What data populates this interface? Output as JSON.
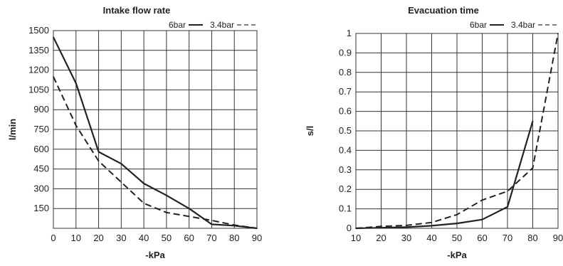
{
  "chart_data": [
    {
      "type": "line",
      "title": "Intake flow rate",
      "xlabel": "-kPa",
      "ylabel": "l/min",
      "x": [
        0,
        10,
        20,
        30,
        40,
        50,
        60,
        70,
        80,
        90
      ],
      "xticks": [
        "0",
        "10",
        "20",
        "30",
        "40",
        "50",
        "60",
        "70",
        "80",
        "90"
      ],
      "xlim": [
        0,
        90
      ],
      "yticks": [
        "150",
        "300",
        "450",
        "600",
        "750",
        "900",
        "1050",
        "1200",
        "1350",
        "1500"
      ],
      "ylim": [
        0,
        1500
      ],
      "grid": true,
      "legend_position": "top-right",
      "series": [
        {
          "name": "6bar",
          "style": "solid",
          "color": "#222222",
          "values": [
            1450,
            1100,
            580,
            490,
            340,
            250,
            150,
            30,
            20,
            0
          ]
        },
        {
          "name": "3.4bar",
          "style": "dashed",
          "color": "#222222",
          "values": [
            1150,
            780,
            510,
            350,
            190,
            120,
            90,
            60,
            25,
            0
          ]
        }
      ]
    },
    {
      "type": "line",
      "title": "Evacuation time",
      "xlabel": "-kPa",
      "ylabel": "s/l",
      "x": [
        10,
        20,
        30,
        40,
        50,
        60,
        70,
        80,
        90
      ],
      "xticks": [
        "10",
        "20",
        "30",
        "40",
        "50",
        "60",
        "70",
        "80",
        "90"
      ],
      "xlim": [
        10,
        90
      ],
      "yticks": [
        "0",
        "0.1",
        "0.2",
        "0.3",
        "0.4",
        "0.5",
        "0.6",
        "0.7",
        "0.8",
        "0.9",
        "1"
      ],
      "ylim": [
        0,
        1
      ],
      "grid": true,
      "legend_position": "top-right",
      "series": [
        {
          "name": "6bar",
          "style": "solid",
          "color": "#222222",
          "values": [
            0,
            0.003,
            0.006,
            0.013,
            0.025,
            0.045,
            0.11,
            0.55,
            null
          ]
        },
        {
          "name": "3.4bar",
          "style": "dashed",
          "color": "#222222",
          "values": [
            0,
            0.01,
            0.015,
            0.03,
            0.07,
            0.145,
            0.19,
            0.31,
            1.0
          ]
        }
      ]
    }
  ]
}
